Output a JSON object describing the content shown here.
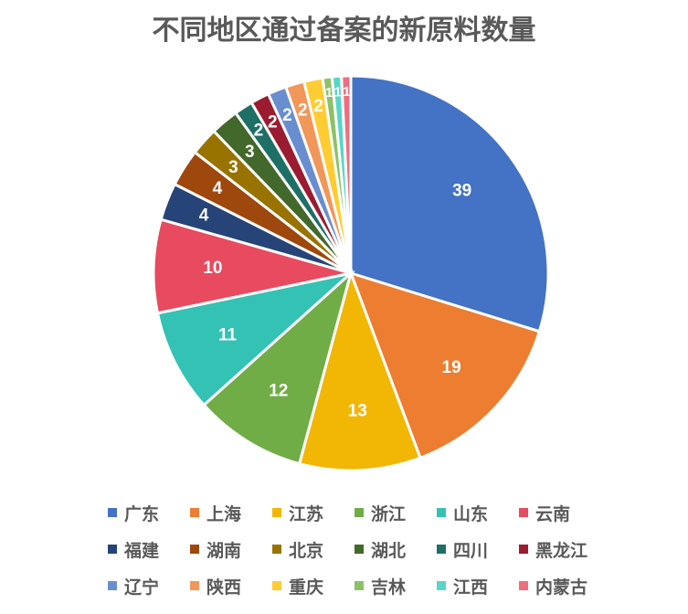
{
  "chart_data": {
    "type": "pie",
    "title": "不同地区通过备案的新原料数量",
    "categories": [
      "广东",
      "上海",
      "江苏",
      "浙江",
      "山东",
      "云南",
      "福建",
      "湖南",
      "北京",
      "湖北",
      "四川",
      "黑龙江",
      "辽宁",
      "陕西",
      "重庆",
      "吉林",
      "江西",
      "内蒙古"
    ],
    "values": [
      39,
      19,
      13,
      12,
      11,
      10,
      4,
      4,
      3,
      3,
      2,
      2,
      2,
      2,
      2,
      1,
      1,
      1
    ],
    "colors": [
      "#4472C4",
      "#ED7D31",
      "#F2B705",
      "#70AD47",
      "#33C2B4",
      "#E84A5F",
      "#264478",
      "#9E480E",
      "#997300",
      "#43682B",
      "#1E7066",
      "#9B1B30",
      "#698ED0",
      "#F1975A",
      "#FFCD33",
      "#8CC168",
      "#56D6C9",
      "#EE6E7F"
    ],
    "data_labels": true,
    "start_angle": "12 o'clock, clockwise",
    "legend_position": "bottom"
  }
}
